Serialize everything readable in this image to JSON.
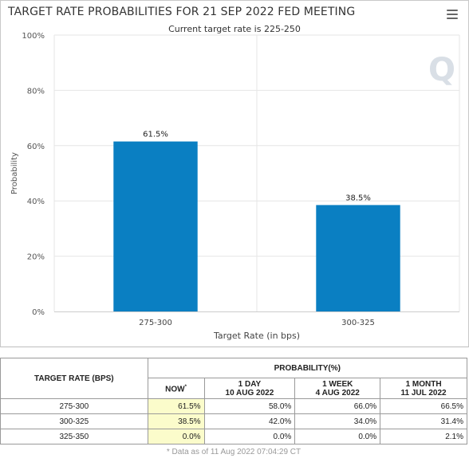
{
  "chart_data": {
    "type": "bar",
    "title": "TARGET RATE PROBABILITIES FOR 21 SEP 2022 FED MEETING",
    "subtitle": "Current target rate is 225-250",
    "xlabel": "Target Rate (in bps)",
    "ylabel": "Probability",
    "categories": [
      "275-300",
      "300-325"
    ],
    "values": [
      61.5,
      38.5
    ],
    "data_labels": [
      "61.5%",
      "38.5%"
    ],
    "y_ticks": [
      "0%",
      "20%",
      "40%",
      "60%",
      "80%",
      "100%"
    ],
    "ylim": [
      0,
      100
    ],
    "grid": true,
    "bar_color": "#0a7fc2",
    "watermark": "Q"
  },
  "menu": {
    "icon": "hamburger-menu-icon"
  },
  "table": {
    "col_header": "TARGET RATE (BPS)",
    "prob_header": "PROBABILITY(%)",
    "sub_headers": [
      {
        "line1": "NOW",
        "line2": "",
        "note": "*"
      },
      {
        "line1": "1 DAY",
        "line2": "10 AUG 2022"
      },
      {
        "line1": "1 WEEK",
        "line2": "4 AUG 2022"
      },
      {
        "line1": "1 MONTH",
        "line2": "11 JUL 2022"
      }
    ],
    "rows": [
      {
        "rate": "275-300",
        "now": "61.5%",
        "day": "58.0%",
        "week": "66.0%",
        "month": "66.5%"
      },
      {
        "rate": "300-325",
        "now": "38.5%",
        "day": "42.0%",
        "week": "34.0%",
        "month": "31.4%"
      },
      {
        "rate": "325-350",
        "now": "0.0%",
        "day": "0.0%",
        "week": "0.0%",
        "month": "2.1%"
      }
    ],
    "footer": "* Data as of 11 Aug 2022 07:04:29 CT",
    "highlight_color": "#fbfccb"
  }
}
